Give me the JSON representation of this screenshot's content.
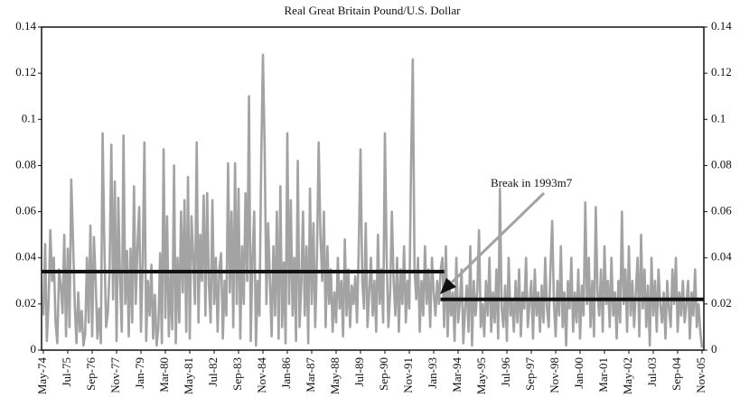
{
  "chart_data": {
    "type": "line",
    "title": "Real Great Britain Pound/U.S. Dollar",
    "categories": [
      "May-74",
      null,
      null,
      null,
      null,
      null,
      null,
      null,
      null,
      null,
      null,
      null,
      null,
      null,
      "Jul-75",
      null,
      null,
      null,
      null,
      null,
      null,
      null,
      null,
      null,
      null,
      null,
      null,
      null,
      "Sep-76",
      null,
      null,
      null,
      null,
      null,
      null,
      null,
      null,
      null,
      null,
      null,
      null,
      null,
      "Nov-77",
      null,
      null,
      null,
      null,
      null,
      null,
      null,
      null,
      null,
      null,
      null,
      null,
      null,
      "Jan-79",
      null,
      null,
      null,
      null,
      null,
      null,
      null,
      null,
      null,
      null,
      null,
      null,
      null,
      "Mar-80",
      null,
      null,
      null,
      null,
      null,
      null,
      null,
      null,
      null,
      null,
      null,
      null,
      null,
      "May-81",
      null,
      null,
      null,
      null,
      null,
      null,
      null,
      null,
      null,
      null,
      null,
      null,
      null,
      "Jul-82",
      null,
      null,
      null,
      null,
      null,
      null,
      null,
      null,
      null,
      null,
      null,
      null,
      null,
      "Sep-83",
      null,
      null,
      null,
      null,
      null,
      null,
      null,
      null,
      null,
      null,
      null,
      null,
      null,
      "Nov-84",
      null,
      null,
      null,
      null,
      null,
      null,
      null,
      null,
      null,
      null,
      null,
      null,
      null,
      "Jan-86",
      null,
      null,
      null,
      null,
      null,
      null,
      null,
      null,
      null,
      null,
      null,
      null,
      null,
      "Mar-87",
      null,
      null,
      null,
      null,
      null,
      null,
      null,
      null,
      null,
      null,
      null,
      null,
      null,
      "May-88",
      null,
      null,
      null,
      null,
      null,
      null,
      null,
      null,
      null,
      null,
      null,
      null,
      null,
      "Jul-89",
      null,
      null,
      null,
      null,
      null,
      null,
      null,
      null,
      null,
      null,
      null,
      null,
      null,
      "Sep-90",
      null,
      null,
      null,
      null,
      null,
      null,
      null,
      null,
      null,
      null,
      null,
      null,
      null,
      "Nov-91",
      null,
      null,
      null,
      null,
      null,
      null,
      null,
      null,
      null,
      null,
      null,
      null,
      null,
      "Jan-93",
      null,
      null,
      null,
      null,
      null,
      null,
      null,
      null,
      null,
      null,
      null,
      null,
      null,
      "Mar-94",
      null,
      null,
      null,
      null,
      null,
      null,
      null,
      null,
      null,
      null,
      null,
      null,
      null,
      "May-95",
      null,
      null,
      null,
      null,
      null,
      null,
      null,
      null,
      null,
      null,
      null,
      null,
      null,
      "Jul-96",
      null,
      null,
      null,
      null,
      null,
      null,
      null,
      null,
      null,
      null,
      null,
      null,
      null,
      "Sep-97",
      null,
      null,
      null,
      null,
      null,
      null,
      null,
      null,
      null,
      null,
      null,
      null,
      null,
      "Nov-98",
      null,
      null,
      null,
      null,
      null,
      null,
      null,
      null,
      null,
      null,
      null,
      null,
      null,
      "Jan-00",
      null,
      null,
      null,
      null,
      null,
      null,
      null,
      null,
      null,
      null,
      null,
      null,
      null,
      "Mar-01",
      null,
      null,
      null,
      null,
      null,
      null,
      null,
      null,
      null,
      null,
      null,
      null,
      null,
      "May-02",
      null,
      null,
      null,
      null,
      null,
      null,
      null,
      null,
      null,
      null,
      null,
      null,
      null,
      "Jul-03",
      null,
      null,
      null,
      null,
      null,
      null,
      null,
      null,
      null,
      null,
      null,
      null,
      null,
      "Sep-04",
      null,
      null,
      null,
      null,
      null,
      null,
      null,
      null,
      null,
      null,
      null,
      null,
      null,
      "Nov-05"
    ],
    "color": "#a3a3a3",
    "values": [
      0.015,
      0.046,
      0.004,
      0.021,
      0.052,
      0.03,
      0.04,
      0.012,
      0.003,
      0.035,
      0.028,
      0.016,
      0.05,
      0.006,
      0.044,
      0.01,
      0.074,
      0.048,
      0.02,
      0.003,
      0.025,
      0.008,
      0.017,
      0.002,
      0.007,
      0.04,
      0.012,
      0.054,
      0.006,
      0.049,
      0.03,
      0.005,
      0.018,
      0.003,
      0.094,
      0.045,
      0.01,
      0.016,
      0.035,
      0.089,
      0.022,
      0.073,
      0.004,
      0.066,
      0.03,
      0.008,
      0.093,
      0.02,
      0.043,
      0.006,
      0.044,
      0.012,
      0.071,
      0.02,
      0.045,
      0.062,
      0.008,
      0.038,
      0.09,
      0.004,
      0.03,
      0.015,
      0.037,
      0.005,
      0.024,
      0.002,
      0.01,
      0.042,
      0.003,
      0.087,
      0.014,
      0.058,
      0.006,
      0.033,
      0.009,
      0.08,
      0.003,
      0.04,
      0.012,
      0.06,
      0.025,
      0.065,
      0.008,
      0.075,
      0.005,
      0.058,
      0.04,
      0.02,
      0.09,
      0.012,
      0.05,
      0.03,
      0.067,
      0.015,
      0.068,
      0.028,
      0.012,
      0.065,
      0.02,
      0.04,
      0.008,
      0.035,
      0.042,
      0.005,
      0.03,
      0.015,
      0.081,
      0.025,
      0.06,
      0.01,
      0.081,
      0.02,
      0.07,
      0.005,
      0.045,
      0.02,
      0.068,
      0.03,
      0.11,
      0.004,
      0.04,
      0.06,
      0.002,
      0.03,
      0.015,
      0.081,
      0.128,
      0.087,
      0.02,
      0.055,
      0.03,
      0.006,
      0.045,
      0.015,
      0.06,
      0.005,
      0.071,
      0.01,
      0.038,
      0.003,
      0.094,
      0.02,
      0.065,
      0.015,
      0.04,
      0.004,
      0.082,
      0.01,
      0.028,
      0.06,
      0.015,
      0.045,
      0.003,
      0.07,
      0.02,
      0.055,
      0.01,
      0.04,
      0.09,
      0.05,
      0.03,
      0.06,
      0.01,
      0.045,
      0.02,
      0.035,
      0.008,
      0.025,
      0.012,
      0.04,
      0.018,
      0.03,
      0.006,
      0.048,
      0.015,
      0.035,
      0.01,
      0.028,
      0.02,
      0.032,
      0.012,
      0.045,
      0.087,
      0.03,
      0.018,
      0.055,
      0.01,
      0.025,
      0.04,
      0.015,
      0.03,
      0.008,
      0.05,
      0.02,
      0.035,
      0.012,
      0.094,
      0.04,
      0.01,
      0.025,
      0.06,
      0.03,
      0.015,
      0.04,
      0.008,
      0.035,
      0.02,
      0.045,
      0.012,
      0.03,
      0.018,
      0.08,
      0.126,
      0.035,
      0.022,
      0.04,
      0.008,
      0.03,
      0.015,
      0.045,
      0.02,
      0.035,
      0.01,
      0.04,
      0.025,
      0.015,
      0.03,
      0.02,
      0.035,
      0.04,
      0.01,
      0.045,
      0.006,
      0.03,
      0.015,
      0.025,
      0.004,
      0.04,
      0.012,
      0.02,
      0.035,
      0.003,
      0.018,
      0.028,
      0.008,
      0.045,
      0.002,
      0.03,
      0.015,
      0.025,
      0.052,
      0.01,
      0.02,
      0.006,
      0.03,
      0.015,
      0.04,
      0.008,
      0.025,
      0.012,
      0.035,
      0.005,
      0.07,
      0.018,
      0.01,
      0.028,
      0.004,
      0.04,
      0.015,
      0.022,
      0.008,
      0.03,
      0.012,
      0.035,
      0.006,
      0.025,
      0.018,
      0.04,
      0.01,
      0.02,
      0.03,
      0.005,
      0.035,
      0.015,
      0.025,
      0.008,
      0.028,
      0.012,
      0.04,
      0.018,
      0.01,
      0.035,
      0.056,
      0.02,
      0.006,
      0.03,
      0.015,
      0.045,
      0.01,
      0.025,
      0.002,
      0.03,
      0.018,
      0.04,
      0.008,
      0.025,
      0.012,
      0.035,
      0.005,
      0.028,
      0.015,
      0.064,
      0.02,
      0.04,
      0.01,
      0.03,
      0.006,
      0.062,
      0.025,
      0.015,
      0.035,
      0.008,
      0.045,
      0.02,
      0.03,
      0.01,
      0.04,
      0.015,
      0.025,
      0.005,
      0.03,
      0.012,
      0.06,
      0.02,
      0.035,
      0.008,
      0.045,
      0.015,
      0.03,
      0.01,
      0.025,
      0.04,
      0.006,
      0.05,
      0.018,
      0.035,
      0.01,
      0.028,
      0.002,
      0.04,
      0.015,
      0.03,
      0.008,
      0.035,
      0.02,
      0.012,
      0.025,
      0.005,
      0.03,
      0.018,
      0.01,
      0.035,
      0.02,
      0.04,
      0.008,
      0.025,
      0.015,
      0.03,
      0.012,
      0.02,
      0.03,
      0.005,
      0.025,
      0.015,
      0.035,
      0.01,
      0.02,
      0.008,
      0.001
    ],
    "segments": [
      {
        "value": 0.034,
        "start": 0,
        "end": 229
      },
      {
        "value": 0.022,
        "start": 230,
        "end": 378
      }
    ],
    "annotation": "Break in 1993m7",
    "ylim": [
      0,
      0.14
    ],
    "yticks": [
      0,
      0.02,
      0.04,
      0.06,
      0.08,
      0.1,
      0.12,
      0.14
    ],
    "y2lim": [
      0,
      0.14
    ],
    "y2ticks": [
      0,
      0.02,
      0.04,
      0.06,
      0.08,
      0.1,
      0.12,
      0.14
    ],
    "grid": false
  }
}
